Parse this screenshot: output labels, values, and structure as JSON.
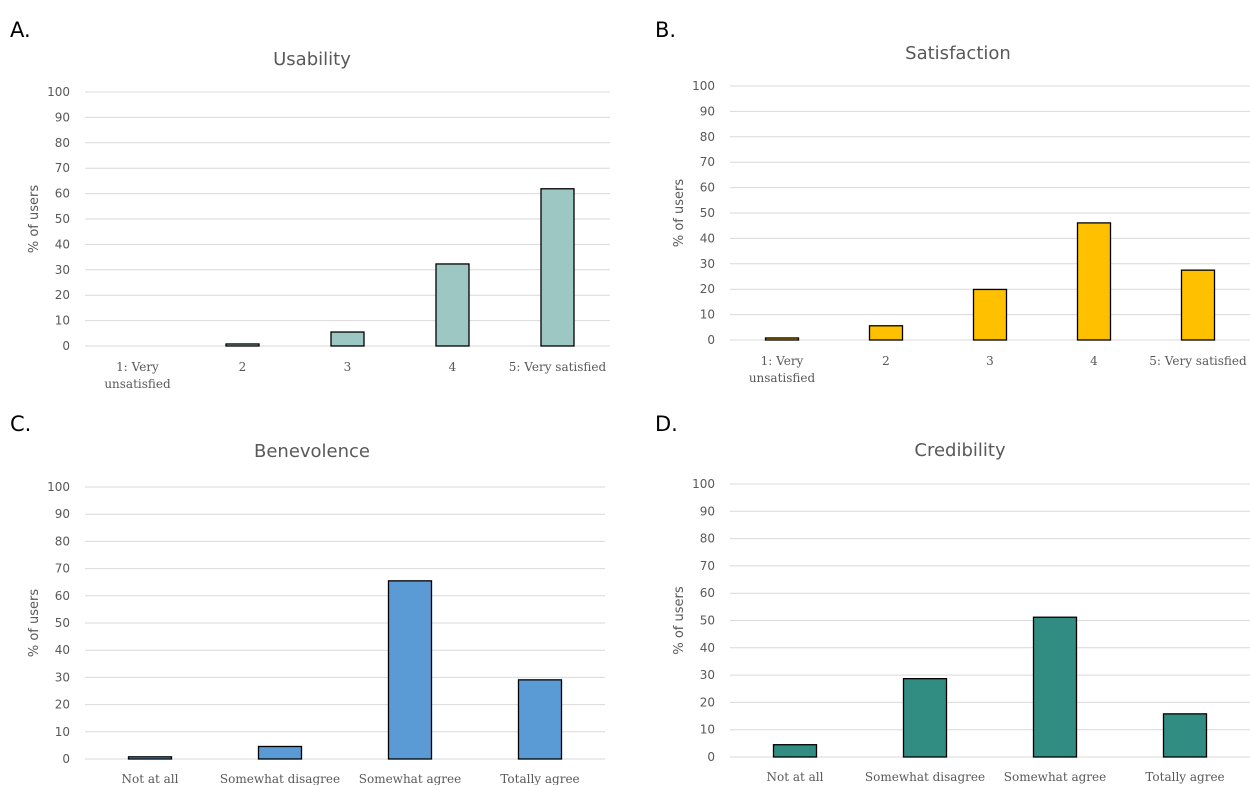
{
  "panels": [
    "A.",
    "B.",
    "C.",
    "D."
  ],
  "chart_data": [
    {
      "type": "bar",
      "panel": "A.",
      "title": "Usability",
      "xlabel": "",
      "ylabel": "% of users",
      "ylim": [
        0,
        100
      ],
      "yticks": [
        0,
        10,
        20,
        30,
        40,
        50,
        60,
        70,
        80,
        90,
        100
      ],
      "categories": [
        [
          "1: Very",
          "unsatisfied"
        ],
        [
          "2"
        ],
        [
          "3"
        ],
        [
          "4"
        ],
        [
          "5: Very satisfied"
        ]
      ],
      "values": [
        0,
        0.8,
        5.5,
        32.3,
        61.9
      ],
      "color": "#9dc7c3",
      "grid": true,
      "legend": "none"
    },
    {
      "type": "bar",
      "panel": "B.",
      "title": "Satisfaction",
      "xlabel": "",
      "ylabel": "% of users",
      "ylim": [
        0,
        100
      ],
      "yticks": [
        0,
        10,
        20,
        30,
        40,
        50,
        60,
        70,
        80,
        90,
        100
      ],
      "categories": [
        [
          "1: Very",
          "unsatisfied"
        ],
        [
          "2"
        ],
        [
          "3"
        ],
        [
          "4"
        ],
        [
          "5: Very satisfied"
        ]
      ],
      "values": [
        0.8,
        5.6,
        19.9,
        46.1,
        27.5
      ],
      "color": "#ffc000",
      "grid": true,
      "legend": "none"
    },
    {
      "type": "bar",
      "panel": "C.",
      "title": "Benevolence",
      "xlabel": "",
      "ylabel": "% of users",
      "ylim": [
        0,
        100
      ],
      "yticks": [
        0,
        10,
        20,
        30,
        40,
        50,
        60,
        70,
        80,
        90,
        100
      ],
      "categories": [
        [
          "Not at all"
        ],
        [
          "Somewhat disagree"
        ],
        [
          "Somewhat agree"
        ],
        [
          "Totally agree"
        ]
      ],
      "values": [
        0.8,
        4.6,
        65.5,
        29.1
      ],
      "color": "#5b9bd5",
      "grid": true,
      "legend": "none"
    },
    {
      "type": "bar",
      "panel": "D.",
      "title": "Credibility",
      "xlabel": "",
      "ylabel": "% of users",
      "ylim": [
        0,
        100
      ],
      "yticks": [
        0,
        10,
        20,
        30,
        40,
        50,
        60,
        70,
        80,
        90,
        100
      ],
      "categories": [
        [
          "Not at all"
        ],
        [
          "Somewhat disagree"
        ],
        [
          "Somewhat agree"
        ],
        [
          "Totally agree"
        ]
      ],
      "values": [
        4.5,
        28.7,
        51.2,
        15.8
      ],
      "color": "#318d82",
      "grid": true,
      "legend": "none"
    }
  ]
}
